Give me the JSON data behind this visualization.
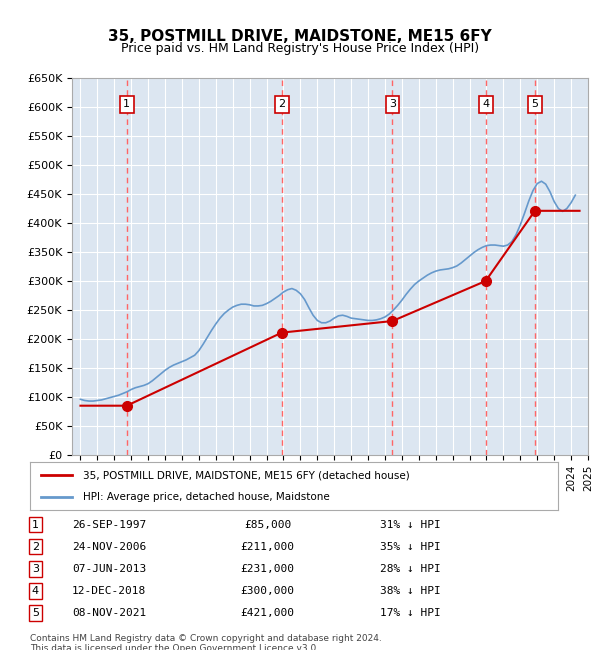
{
  "title": "35, POSTMILL DRIVE, MAIDSTONE, ME15 6FY",
  "subtitle": "Price paid vs. HM Land Registry's House Price Index (HPI)",
  "ylabel": "",
  "xlabel": "",
  "ylim": [
    0,
    650000
  ],
  "yticks": [
    0,
    50000,
    100000,
    150000,
    200000,
    250000,
    300000,
    350000,
    400000,
    450000,
    500000,
    550000,
    600000,
    650000
  ],
  "ytick_labels": [
    "£0",
    "£50K",
    "£100K",
    "£150K",
    "£200K",
    "£250K",
    "£300K",
    "£350K",
    "£400K",
    "£450K",
    "£500K",
    "£550K",
    "£600K",
    "£650K"
  ],
  "background_color": "#dce6f1",
  "plot_bg_color": "#dce6f1",
  "grid_color": "#ffffff",
  "sale_dates_num": [
    1997.74,
    2006.9,
    2013.44,
    2018.95,
    2021.86
  ],
  "sale_prices": [
    85000,
    211000,
    231000,
    300000,
    421000
  ],
  "sale_labels": [
    "1",
    "2",
    "3",
    "4",
    "5"
  ],
  "sale_info": [
    {
      "label": "1",
      "date": "26-SEP-1997",
      "price": "£85,000",
      "hpi": "31% ↓ HPI"
    },
    {
      "label": "2",
      "date": "24-NOV-2006",
      "price": "£211,000",
      "hpi": "35% ↓ HPI"
    },
    {
      "label": "3",
      "date": "07-JUN-2013",
      "price": "£231,000",
      "hpi": "28% ↓ HPI"
    },
    {
      "label": "4",
      "date": "12-DEC-2018",
      "price": "£300,000",
      "hpi": "38% ↓ HPI"
    },
    {
      "label": "5",
      "date": "08-NOV-2021",
      "price": "£421,000",
      "hpi": "17% ↓ HPI"
    }
  ],
  "red_line_color": "#cc0000",
  "blue_line_color": "#6699cc",
  "marker_color": "#cc0000",
  "dashed_line_color": "#ff6666",
  "legend_label_red": "35, POSTMILL DRIVE, MAIDSTONE, ME15 6FY (detached house)",
  "legend_label_blue": "HPI: Average price, detached house, Maidstone",
  "footer_text": "Contains HM Land Registry data © Crown copyright and database right 2024.\nThis data is licensed under the Open Government Licence v3.0.",
  "hpi_years": [
    1995.0,
    1995.25,
    1995.5,
    1995.75,
    1996.0,
    1996.25,
    1996.5,
    1996.75,
    1997.0,
    1997.25,
    1997.5,
    1997.75,
    1998.0,
    1998.25,
    1998.5,
    1998.75,
    1999.0,
    1999.25,
    1999.5,
    1999.75,
    2000.0,
    2000.25,
    2000.5,
    2000.75,
    2001.0,
    2001.25,
    2001.5,
    2001.75,
    2002.0,
    2002.25,
    2002.5,
    2002.75,
    2003.0,
    2003.25,
    2003.5,
    2003.75,
    2004.0,
    2004.25,
    2004.5,
    2004.75,
    2005.0,
    2005.25,
    2005.5,
    2005.75,
    2006.0,
    2006.25,
    2006.5,
    2006.75,
    2007.0,
    2007.25,
    2007.5,
    2007.75,
    2008.0,
    2008.25,
    2008.5,
    2008.75,
    2009.0,
    2009.25,
    2009.5,
    2009.75,
    2010.0,
    2010.25,
    2010.5,
    2010.75,
    2011.0,
    2011.25,
    2011.5,
    2011.75,
    2012.0,
    2012.25,
    2012.5,
    2012.75,
    2013.0,
    2013.25,
    2013.5,
    2013.75,
    2014.0,
    2014.25,
    2014.5,
    2014.75,
    2015.0,
    2015.25,
    2015.5,
    2015.75,
    2016.0,
    2016.25,
    2016.5,
    2016.75,
    2017.0,
    2017.25,
    2017.5,
    2017.75,
    2018.0,
    2018.25,
    2018.5,
    2018.75,
    2019.0,
    2019.25,
    2019.5,
    2019.75,
    2020.0,
    2020.25,
    2020.5,
    2020.75,
    2021.0,
    2021.25,
    2021.5,
    2021.75,
    2022.0,
    2022.25,
    2022.5,
    2022.75,
    2023.0,
    2023.25,
    2023.5,
    2023.75,
    2024.0,
    2024.25
  ],
  "hpi_values": [
    96000,
    94000,
    93000,
    93000,
    94000,
    95000,
    97000,
    99000,
    101000,
    103000,
    106000,
    109000,
    113000,
    116000,
    118000,
    120000,
    123000,
    128000,
    134000,
    140000,
    146000,
    151000,
    155000,
    158000,
    161000,
    164000,
    168000,
    172000,
    180000,
    191000,
    203000,
    215000,
    226000,
    236000,
    244000,
    250000,
    255000,
    258000,
    260000,
    260000,
    259000,
    257000,
    257000,
    258000,
    261000,
    265000,
    270000,
    275000,
    281000,
    285000,
    287000,
    284000,
    278000,
    268000,
    254000,
    241000,
    232000,
    228000,
    228000,
    231000,
    236000,
    240000,
    241000,
    239000,
    236000,
    235000,
    234000,
    233000,
    232000,
    232000,
    233000,
    235000,
    238000,
    243000,
    250000,
    258000,
    267000,
    277000,
    286000,
    294000,
    300000,
    305000,
    310000,
    314000,
    317000,
    319000,
    320000,
    321000,
    323000,
    326000,
    331000,
    337000,
    343000,
    349000,
    354000,
    358000,
    361000,
    362000,
    362000,
    361000,
    360000,
    362000,
    368000,
    380000,
    397000,
    417000,
    438000,
    456000,
    468000,
    472000,
    467000,
    454000,
    437000,
    425000,
    420000,
    425000,
    435000,
    448000
  ],
  "red_line_years": [
    1995.0,
    1997.74,
    1997.74,
    2006.9,
    2006.9,
    2013.44,
    2013.44,
    2018.95,
    2018.95,
    2021.86,
    2021.86,
    2024.5
  ],
  "red_line_values": [
    85000,
    85000,
    85000,
    211000,
    211000,
    231000,
    231000,
    300000,
    300000,
    421000,
    421000,
    421000
  ]
}
